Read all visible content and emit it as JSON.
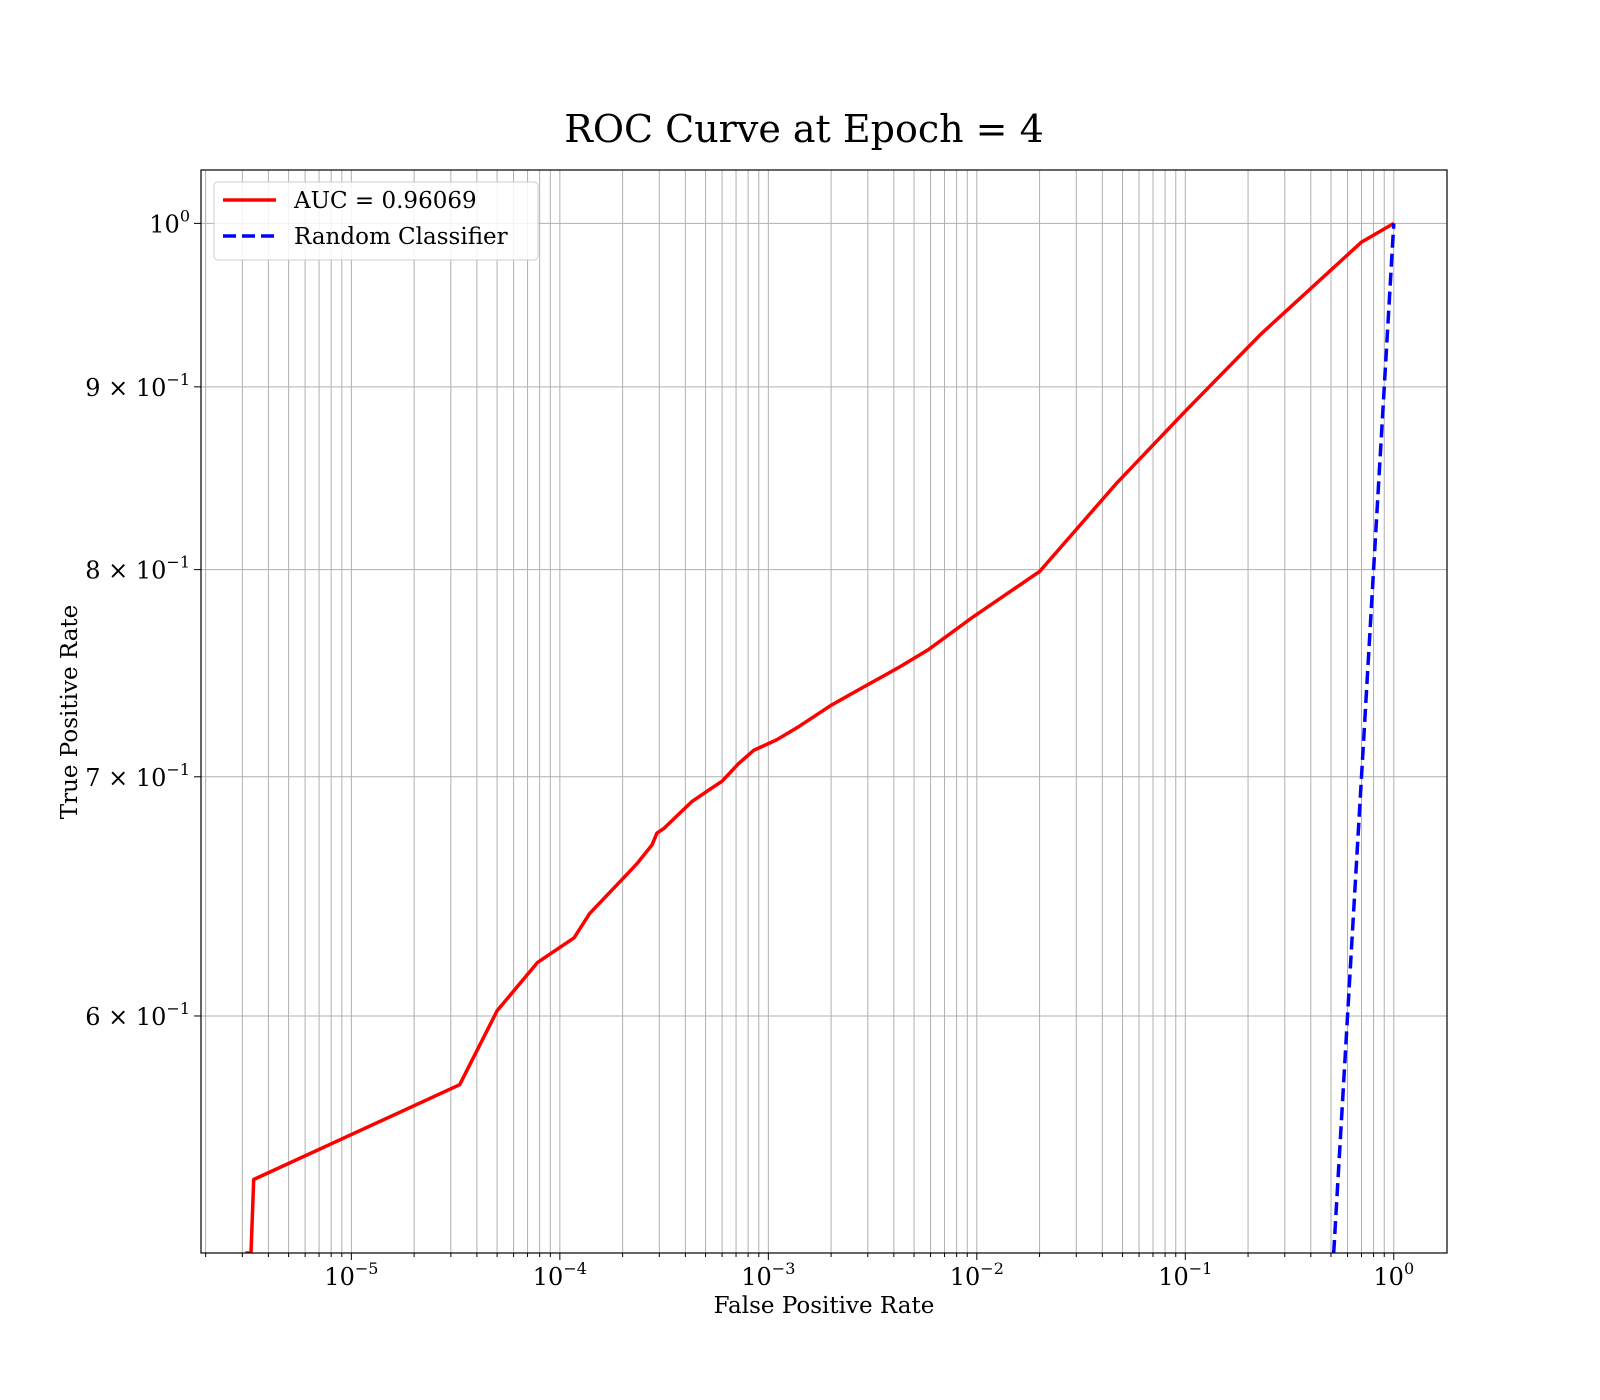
{
  "colors": {
    "roc": "#ff0000",
    "random": "#0000ff",
    "grid": "#b0b0b0",
    "axes": "#000000"
  },
  "chart_data": {
    "type": "line",
    "title": "ROC Curve at Epoch = 4",
    "xlabel": "False Positive Rate",
    "ylabel": "True Positive Rate",
    "xscale": "log",
    "yscale": "log",
    "xlim": [
      1.9e-06,
      1.8
    ],
    "ylim": [
      0.515,
      1.035
    ],
    "grid": "both major and minor",
    "legend_position": "upper-left",
    "x_ticks": [
      {
        "base": "10",
        "exp": "−5"
      },
      {
        "base": "10",
        "exp": "−4"
      },
      {
        "base": "10",
        "exp": "−3"
      },
      {
        "base": "10",
        "exp": "−2"
      },
      {
        "base": "10",
        "exp": "−1"
      },
      {
        "base": "10",
        "exp": "0"
      }
    ],
    "y_ticks": [
      {
        "base": "6 × 10",
        "exp": "−1",
        "value": 0.6
      },
      {
        "base": "7 × 10",
        "exp": "−1",
        "value": 0.7
      },
      {
        "base": "8 × 10",
        "exp": "−1",
        "value": 0.8
      },
      {
        "base": "9 × 10",
        "exp": "−1",
        "value": 0.9
      },
      {
        "base": "10",
        "exp": "0",
        "value": 1.0
      }
    ],
    "series": [
      {
        "name": "AUC = 0.96069",
        "style": "solid",
        "color": "#ff0000",
        "x": [
          3.1e-06,
          3.3e-06,
          3.4e-06,
          3.31e-05,
          5e-05,
          7.8e-05,
          0.000117,
          0.000139,
          0.000193,
          0.000235,
          0.000277,
          0.000292,
          0.000315,
          0.000378,
          0.000431,
          0.000517,
          0.0006,
          0.00072,
          0.00085,
          0.0011,
          0.0014,
          0.002,
          0.0029,
          0.0042,
          0.0059,
          0.0096,
          0.02,
          0.047,
          0.1,
          0.23,
          0.45,
          0.7,
          1.0
        ],
        "y": [
          0.515,
          0.515,
          0.54,
          0.574,
          0.602,
          0.621,
          0.631,
          0.641,
          0.654,
          0.662,
          0.67,
          0.675,
          0.677,
          0.684,
          0.689,
          0.694,
          0.698,
          0.706,
          0.712,
          0.717,
          0.723,
          0.733,
          0.742,
          0.751,
          0.76,
          0.776,
          0.799,
          0.846,
          0.886,
          0.931,
          0.965,
          0.988,
          1.0
        ]
      },
      {
        "name": "Random Classifier",
        "style": "dashed",
        "color": "#0000ff",
        "x": [
          0.515,
          1.0
        ],
        "y": [
          0.515,
          1.0
        ]
      }
    ]
  }
}
